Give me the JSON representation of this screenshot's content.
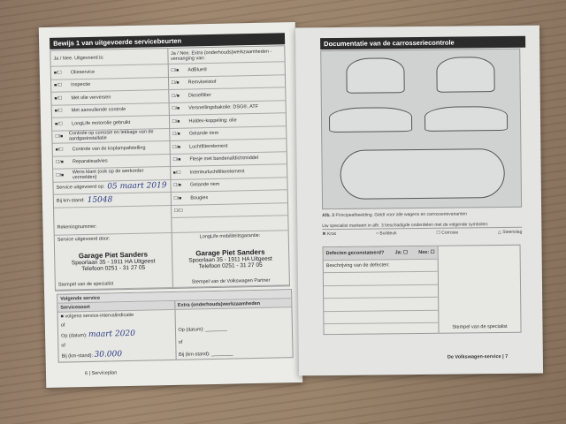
{
  "left_page": {
    "title": "Bewijs 1 van uitgevoerde servicebeurten",
    "col1_header": "Ja / Nee. Uitgevoerd is:",
    "col2_header": "Ja / Nee. Extra (onderhouds)werkzaamheden - vervanging van:",
    "items_left": [
      {
        "check": "■/☐",
        "label": "Olieservice"
      },
      {
        "check": "■/☐",
        "label": "Inspectie"
      },
      {
        "check": "■/☐",
        "label": "Met olie verversen"
      },
      {
        "check": "■/☐",
        "label": "Met aanvullende controle"
      },
      {
        "check": "■/☐",
        "label": "LongLife motorolie gebruikt"
      },
      {
        "check": "☐/■",
        "label": "Controle op corrosie en lekkage van de aardgasinstallatie"
      },
      {
        "check": "■/☐",
        "label": "Controle van de koplampafstelling"
      },
      {
        "check": "☐/■",
        "label": "Reparatieadvies"
      },
      {
        "check": "☐/■",
        "label": "Wens klant (ook op de werkorder vermelden)"
      }
    ],
    "items_right": [
      {
        "check": "☐/■",
        "label": "AdBlue®"
      },
      {
        "check": "☐/■",
        "label": "Remvloeistof"
      },
      {
        "check": "☐/■",
        "label": "Dieselfilter"
      },
      {
        "check": "☐/■",
        "label": "Versnellingsbakolie: DSG®, ATF"
      },
      {
        "check": "☐/■",
        "label": "Haldex-koppeling: olie"
      },
      {
        "check": "☐/■",
        "label": "Getande riem"
      },
      {
        "check": "☐/■",
        "label": "Luchtfilterelement"
      },
      {
        "check": "☐/■",
        "label": "Flesje met bandenafdichtmiddel"
      },
      {
        "check": "■/☐",
        "label": "Interieurluchtfilterelement"
      },
      {
        "check": "☐/■",
        "label": "Getande riem"
      },
      {
        "check": "☐/■",
        "label": "Bougies"
      },
      {
        "check": "☐/☐",
        "label": ""
      }
    ],
    "service_date_label": "Service uitgevoerd op:",
    "service_date": "05 maart 2019",
    "km_label": "Bij km-stand:",
    "km": "15048",
    "invoice_label": "Rekeningnummer:",
    "performed_by_label": "Service uitgevoerd door:",
    "longlife_label": "LongLife mobiliteitsgarantie:",
    "stamp": {
      "name": "Garage Piet Sanders",
      "address": "Spoorlaan 35 - 1911 HA Uitgeest",
      "phone": "Telefoon 0251 - 31 27 05"
    },
    "stamp_label_left": "Stempel van de specialist",
    "stamp_label_right": "Stempel van de Volkswagen Partner",
    "next": {
      "title": "Volgende service",
      "col1": "Servicesoort",
      "col2": "Extra (onderhouds)werkzaamheden",
      "interval": "volgens service-intervalindicatie",
      "or": "of",
      "date_label": "Op (datum):",
      "date": "maart 2020",
      "km_label": "Bij (km-stand):",
      "km": "30.000"
    },
    "footer_page": "6",
    "footer_title": "Serviceplan"
  },
  "right_page": {
    "title": "Documentatie van de carrosseriecontrole",
    "caption_bold": "Afb. 3",
    "caption": "Principeafbeelding. Geldt voor alle wagens en carrosserievarianten",
    "instruction": "Uw specialist markeert in afb. 3 beschadigde onderdelen met de volgende symbolen:",
    "symbols": [
      {
        "icon": "✖",
        "label": "Kras"
      },
      {
        "icon": "○",
        "label": "Buildeuk"
      },
      {
        "icon": "☐",
        "label": "Corrosie"
      },
      {
        "icon": "△",
        "label": "Steenslag"
      }
    ],
    "defects_label": "Defecten geconstateerd?",
    "yes": "Ja:",
    "no": "Nee:",
    "description_label": "Beschrijving van de defecten:",
    "stamp_label": "Stempel van de specialist",
    "footer_title": "De Volkswagen-service",
    "footer_page": "7"
  }
}
